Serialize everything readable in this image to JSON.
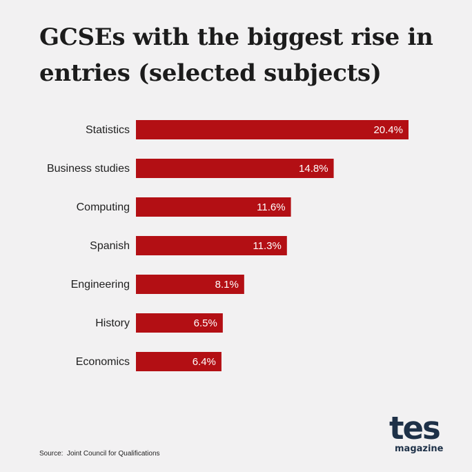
{
  "title": "GCSEs with the biggest rise in entries (selected subjects)",
  "source": "Source:  Joint Council for Qualifications",
  "logo": {
    "main": "tes",
    "sub": "magazine"
  },
  "colors": {
    "bar": "#b30f14",
    "background": "#f2f1f2",
    "text": "#1f1f1f",
    "logo": "#1e3148"
  },
  "chart_data": {
    "type": "bar",
    "orientation": "horizontal",
    "title": "GCSEs with the biggest rise in entries (selected subjects)",
    "categories": [
      "Statistics",
      "Business studies",
      "Computing",
      "Spanish",
      "Engineering",
      "History",
      "Economics"
    ],
    "values": [
      20.4,
      14.8,
      11.6,
      11.3,
      8.1,
      6.5,
      6.4
    ],
    "value_labels": [
      "20.4%",
      "14.8%",
      "11.6%",
      "11.3%",
      "8.1%",
      "6.5%",
      "6.4%"
    ],
    "unit": "%",
    "xlim": [
      0,
      20.4
    ],
    "grid": false,
    "legend": "none"
  }
}
